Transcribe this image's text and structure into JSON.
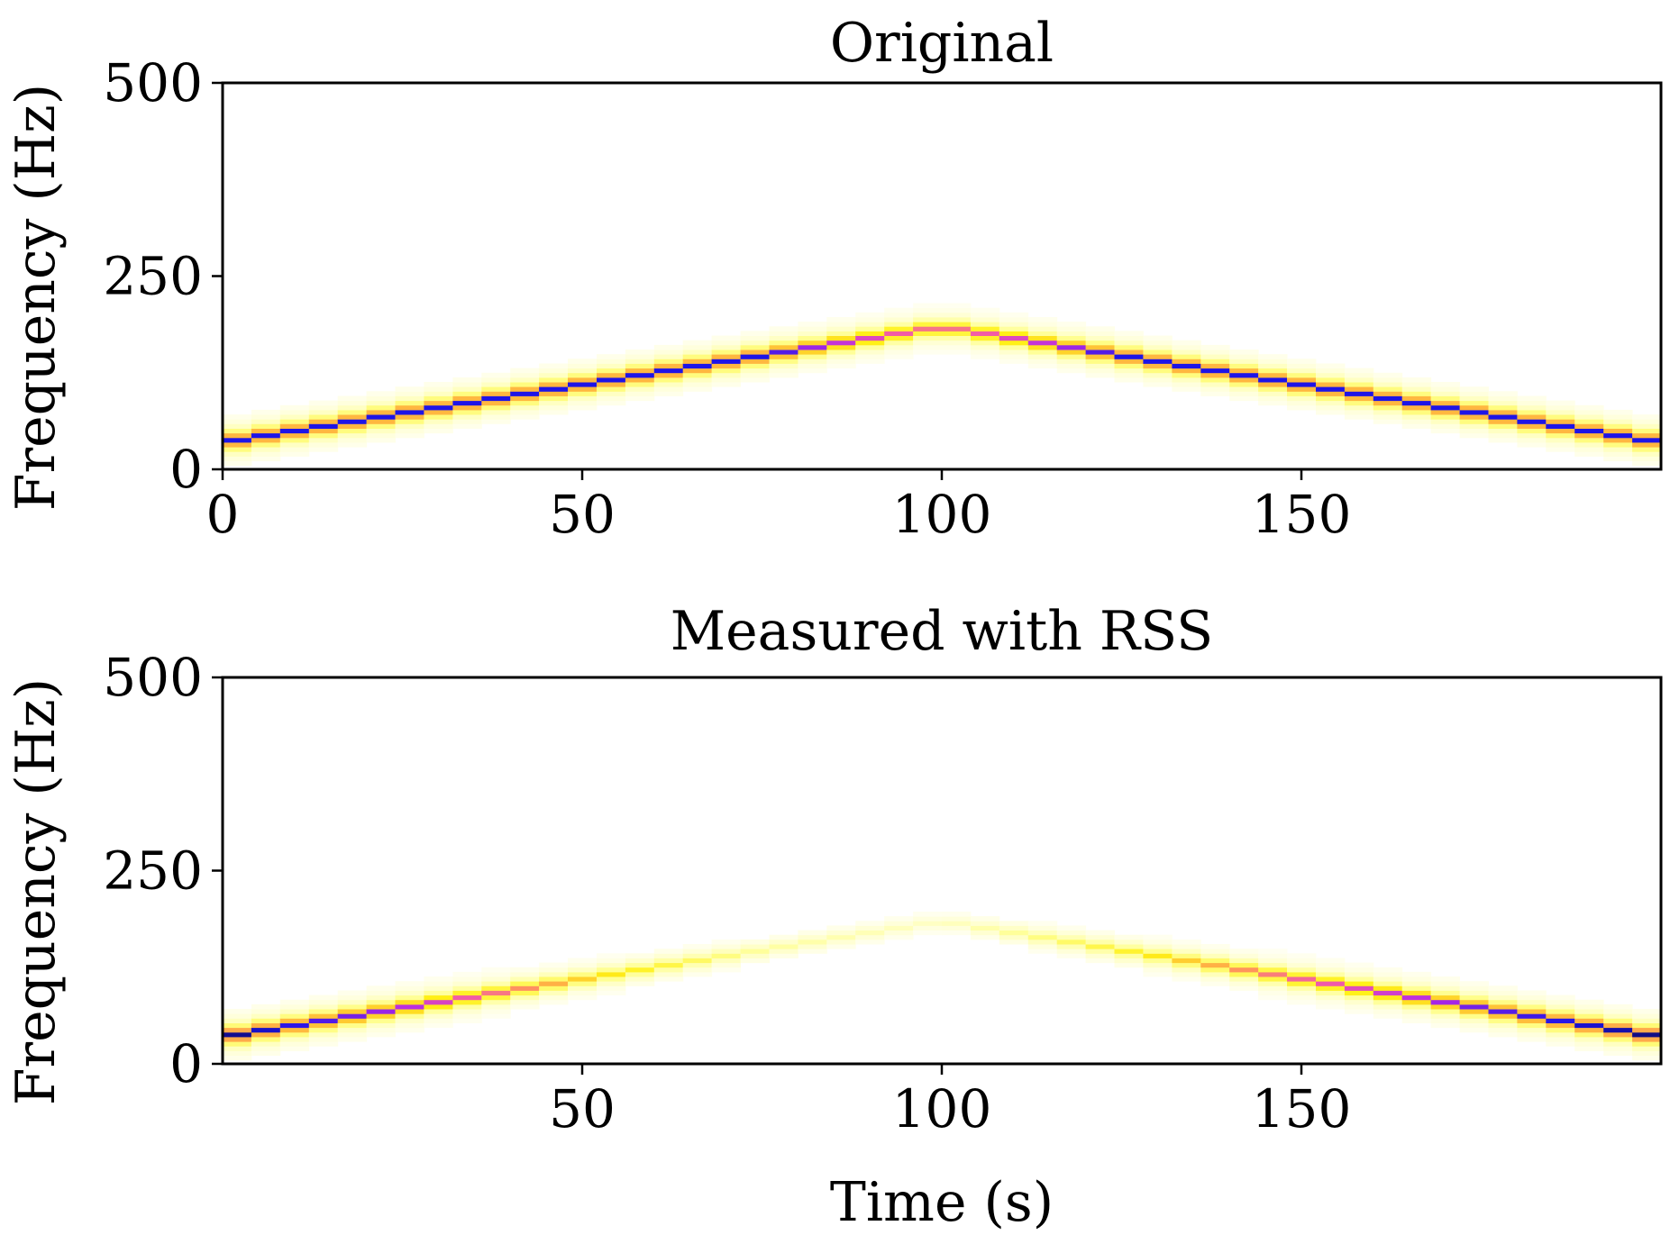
{
  "chart_data": [
    {
      "type": "heatmap",
      "title": "Original",
      "xlabel": "",
      "ylabel": "Frequency (Hz)",
      "xlim": [
        0,
        200
      ],
      "ylim": [
        0,
        500
      ],
      "xticks": [
        "0",
        "50",
        "100",
        "150"
      ],
      "yticks": [
        "0",
        "250",
        "500"
      ],
      "grid": false,
      "colormap": "gnuplot2_r (white→yellow→pink→blue→black)",
      "ridge": {
        "description": "triangular chirp",
        "points": [
          [
            0,
            35
          ],
          [
            100,
            185
          ],
          [
            200,
            35
          ]
        ]
      },
      "intensity": {
        "time": [
          0,
          25,
          50,
          75,
          100,
          125,
          150,
          175,
          200
        ],
        "value": [
          0.9,
          0.9,
          0.9,
          0.9,
          0.6,
          0.9,
          0.9,
          0.9,
          0.9
        ]
      }
    },
    {
      "type": "heatmap",
      "title": "Measured with RSS",
      "xlabel": "Time (s)",
      "ylabel": "Frequency (Hz)",
      "xlim": [
        0,
        200
      ],
      "ylim": [
        0,
        500
      ],
      "xticks": [
        "50",
        "100",
        "150"
      ],
      "yticks": [
        "0",
        "250",
        "500"
      ],
      "grid": false,
      "colormap": "gnuplot2_r (white→yellow→pink→blue→black)",
      "ridge": {
        "description": "triangular chirp",
        "points": [
          [
            0,
            35
          ],
          [
            100,
            185
          ],
          [
            200,
            35
          ]
        ]
      },
      "intensity": {
        "time": [
          0,
          25,
          50,
          75,
          100,
          125,
          150,
          175,
          200
        ],
        "value": [
          0.95,
          0.8,
          0.45,
          0.2,
          0.12,
          0.35,
          0.65,
          0.85,
          0.95
        ]
      }
    }
  ]
}
